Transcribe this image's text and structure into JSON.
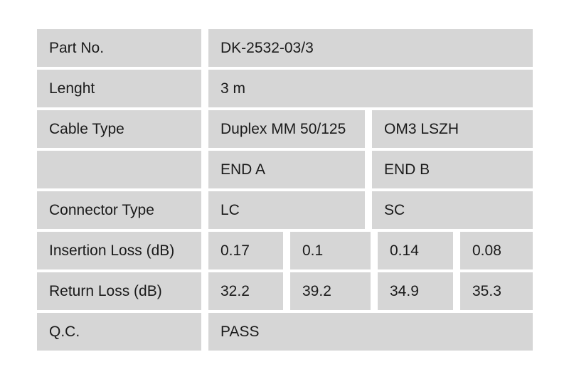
{
  "table": {
    "part_no": {
      "label": "Part No.",
      "value": "DK-2532-03/3"
    },
    "length": {
      "label": "Lenght",
      "value": "3 m"
    },
    "cable_type": {
      "label": "Cable Type",
      "values": [
        "Duplex MM 50/125",
        "OM3 LSZH"
      ]
    },
    "ends_header": {
      "label": "",
      "end_a": "END A",
      "end_b": "END B"
    },
    "connector_type": {
      "label": "Connector Type",
      "end_a": "LC",
      "end_b": "SC"
    },
    "insertion_loss": {
      "label": "Insertion Loss (dB)",
      "values": [
        "0.17",
        "0.1",
        "0.14",
        "0.08"
      ]
    },
    "return_loss": {
      "label": "Return Loss (dB)",
      "values": [
        "32.2",
        "39.2",
        "34.9",
        "35.3"
      ]
    },
    "qc": {
      "label": "Q.C.",
      "value": "PASS"
    }
  },
  "colors": {
    "background": "#ffffff",
    "cell_bg": "#d6d6d6",
    "text": "#1a1a1a"
  }
}
